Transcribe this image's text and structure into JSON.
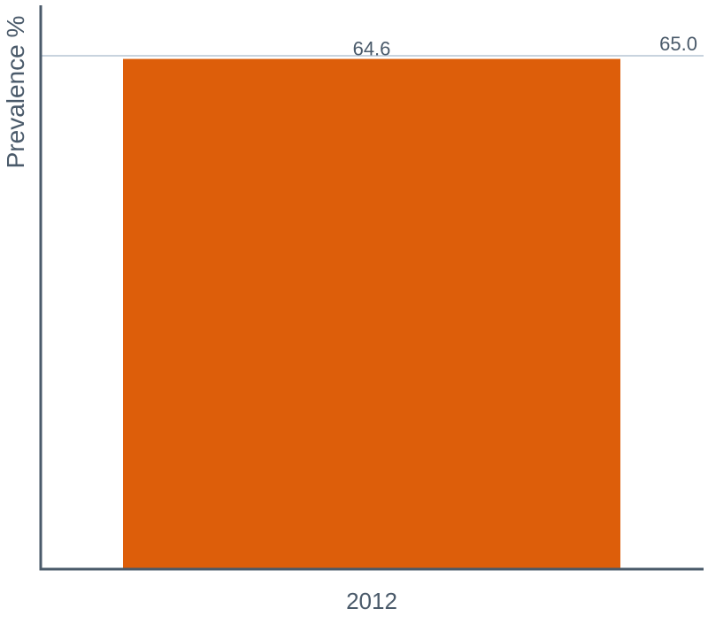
{
  "chart_data": {
    "type": "bar",
    "categories": [
      "2012"
    ],
    "series": [
      {
        "values": [
          64.6
        ]
      }
    ],
    "value_labels": [
      "64.6"
    ],
    "reference_lines": [
      {
        "value": 65.0,
        "label": "65.0"
      }
    ],
    "title": "",
    "xlabel": "",
    "ylabel": "Prevalence %",
    "ylim": [
      0,
      65.0
    ],
    "grid": false,
    "legend": "none",
    "colors": {
      "bar": "#dd5e0a",
      "axis": "#4a5a6a",
      "reference_line": "#c8d3de",
      "text": "#4a5a6a"
    }
  }
}
